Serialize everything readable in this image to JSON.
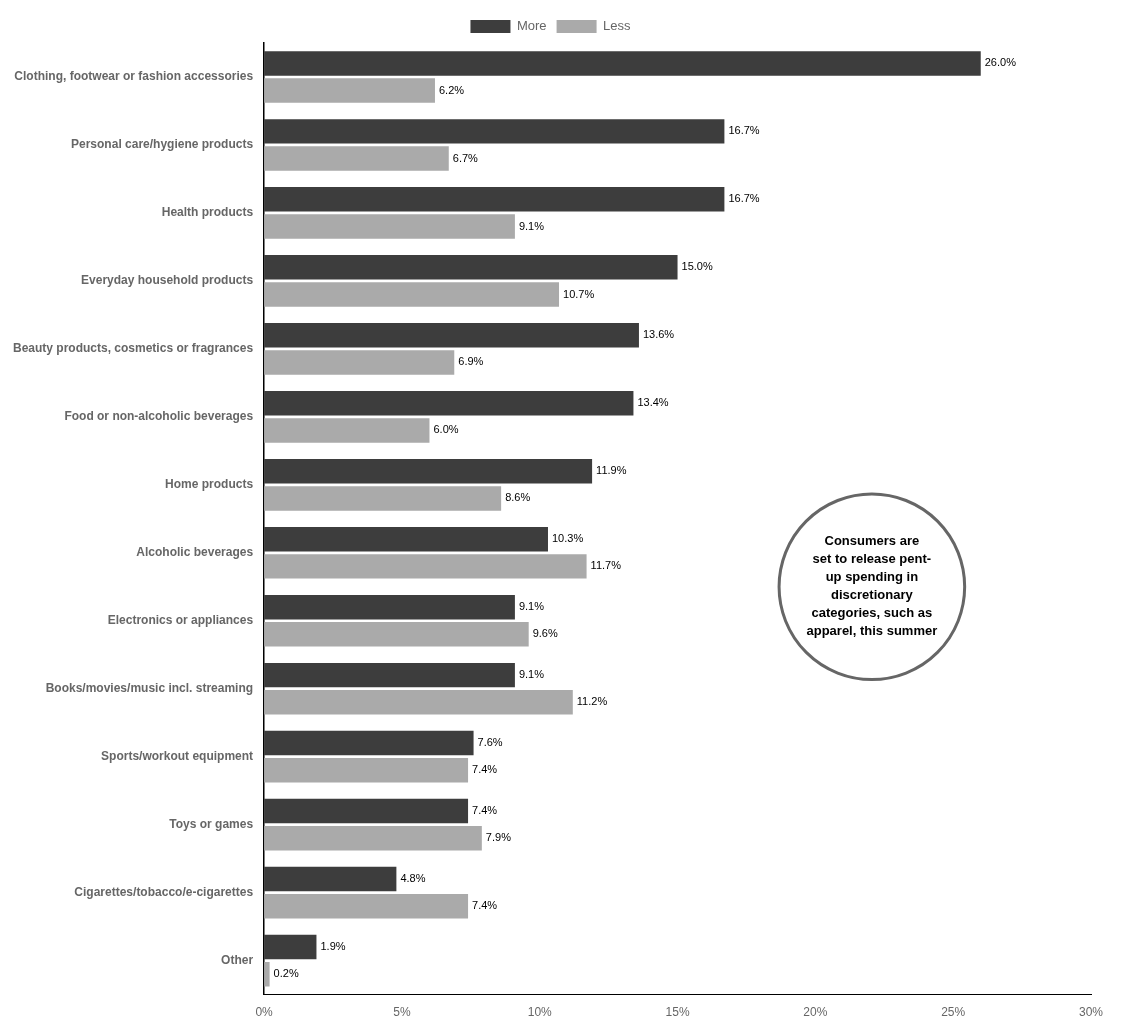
{
  "chart_data": {
    "type": "bar",
    "orientation": "horizontal",
    "categories": [
      "Clothing, footwear or fashion accessories",
      "Personal care/hygiene products",
      "Health products",
      "Everyday household products",
      "Beauty products, cosmetics or fragrances",
      "Food or non-alcoholic beverages",
      "Home products",
      "Alcoholic beverages",
      "Electronics or appliances",
      "Books/movies/music incl. streaming",
      "Sports/workout equipment",
      "Toys or games",
      "Cigarettes/tobacco/e-cigarettes",
      "Other"
    ],
    "series": [
      {
        "name": "More",
        "color": "#3d3d3d",
        "values": [
          26.0,
          16.7,
          16.7,
          15.0,
          13.6,
          13.4,
          11.9,
          10.3,
          9.1,
          9.1,
          7.6,
          7.4,
          4.8,
          1.9
        ],
        "value_labels": [
          "26.0%",
          "16.7%",
          "16.7%",
          "15.0%",
          "13.6%",
          "13.4%",
          "11.9%",
          "10.3%",
          "9.1%",
          "9.1%",
          "7.6%",
          "7.4%",
          "4.8%",
          "1.9%"
        ]
      },
      {
        "name": "Less",
        "color": "#aaaaaa",
        "values": [
          6.2,
          6.7,
          9.1,
          10.7,
          6.9,
          6.0,
          8.6,
          11.7,
          9.6,
          11.2,
          7.4,
          7.9,
          7.4,
          0.2
        ],
        "value_labels": [
          "6.2%",
          "6.7%",
          "9.1%",
          "10.7%",
          "6.9%",
          "6.0%",
          "8.6%",
          "11.7%",
          "9.6%",
          "11.2%",
          "7.4%",
          "7.9%",
          "7.4%",
          "0.2%"
        ]
      }
    ],
    "xlim": [
      0,
      30
    ],
    "xticks": [
      {
        "value": 0,
        "label": "0%"
      },
      {
        "value": 5,
        "label": "5%"
      },
      {
        "value": 10,
        "label": "10%"
      },
      {
        "value": 15,
        "label": "15%"
      },
      {
        "value": 20,
        "label": "20%"
      },
      {
        "value": 25,
        "label": "25%"
      },
      {
        "value": 30,
        "label": "30%"
      }
    ],
    "data_labels": true,
    "legend": "top",
    "grid": false,
    "annotation": "Consumers are\nset to release pent-\nup spending in\ndiscretionary\ncategories, such as\napparel, this summer"
  }
}
